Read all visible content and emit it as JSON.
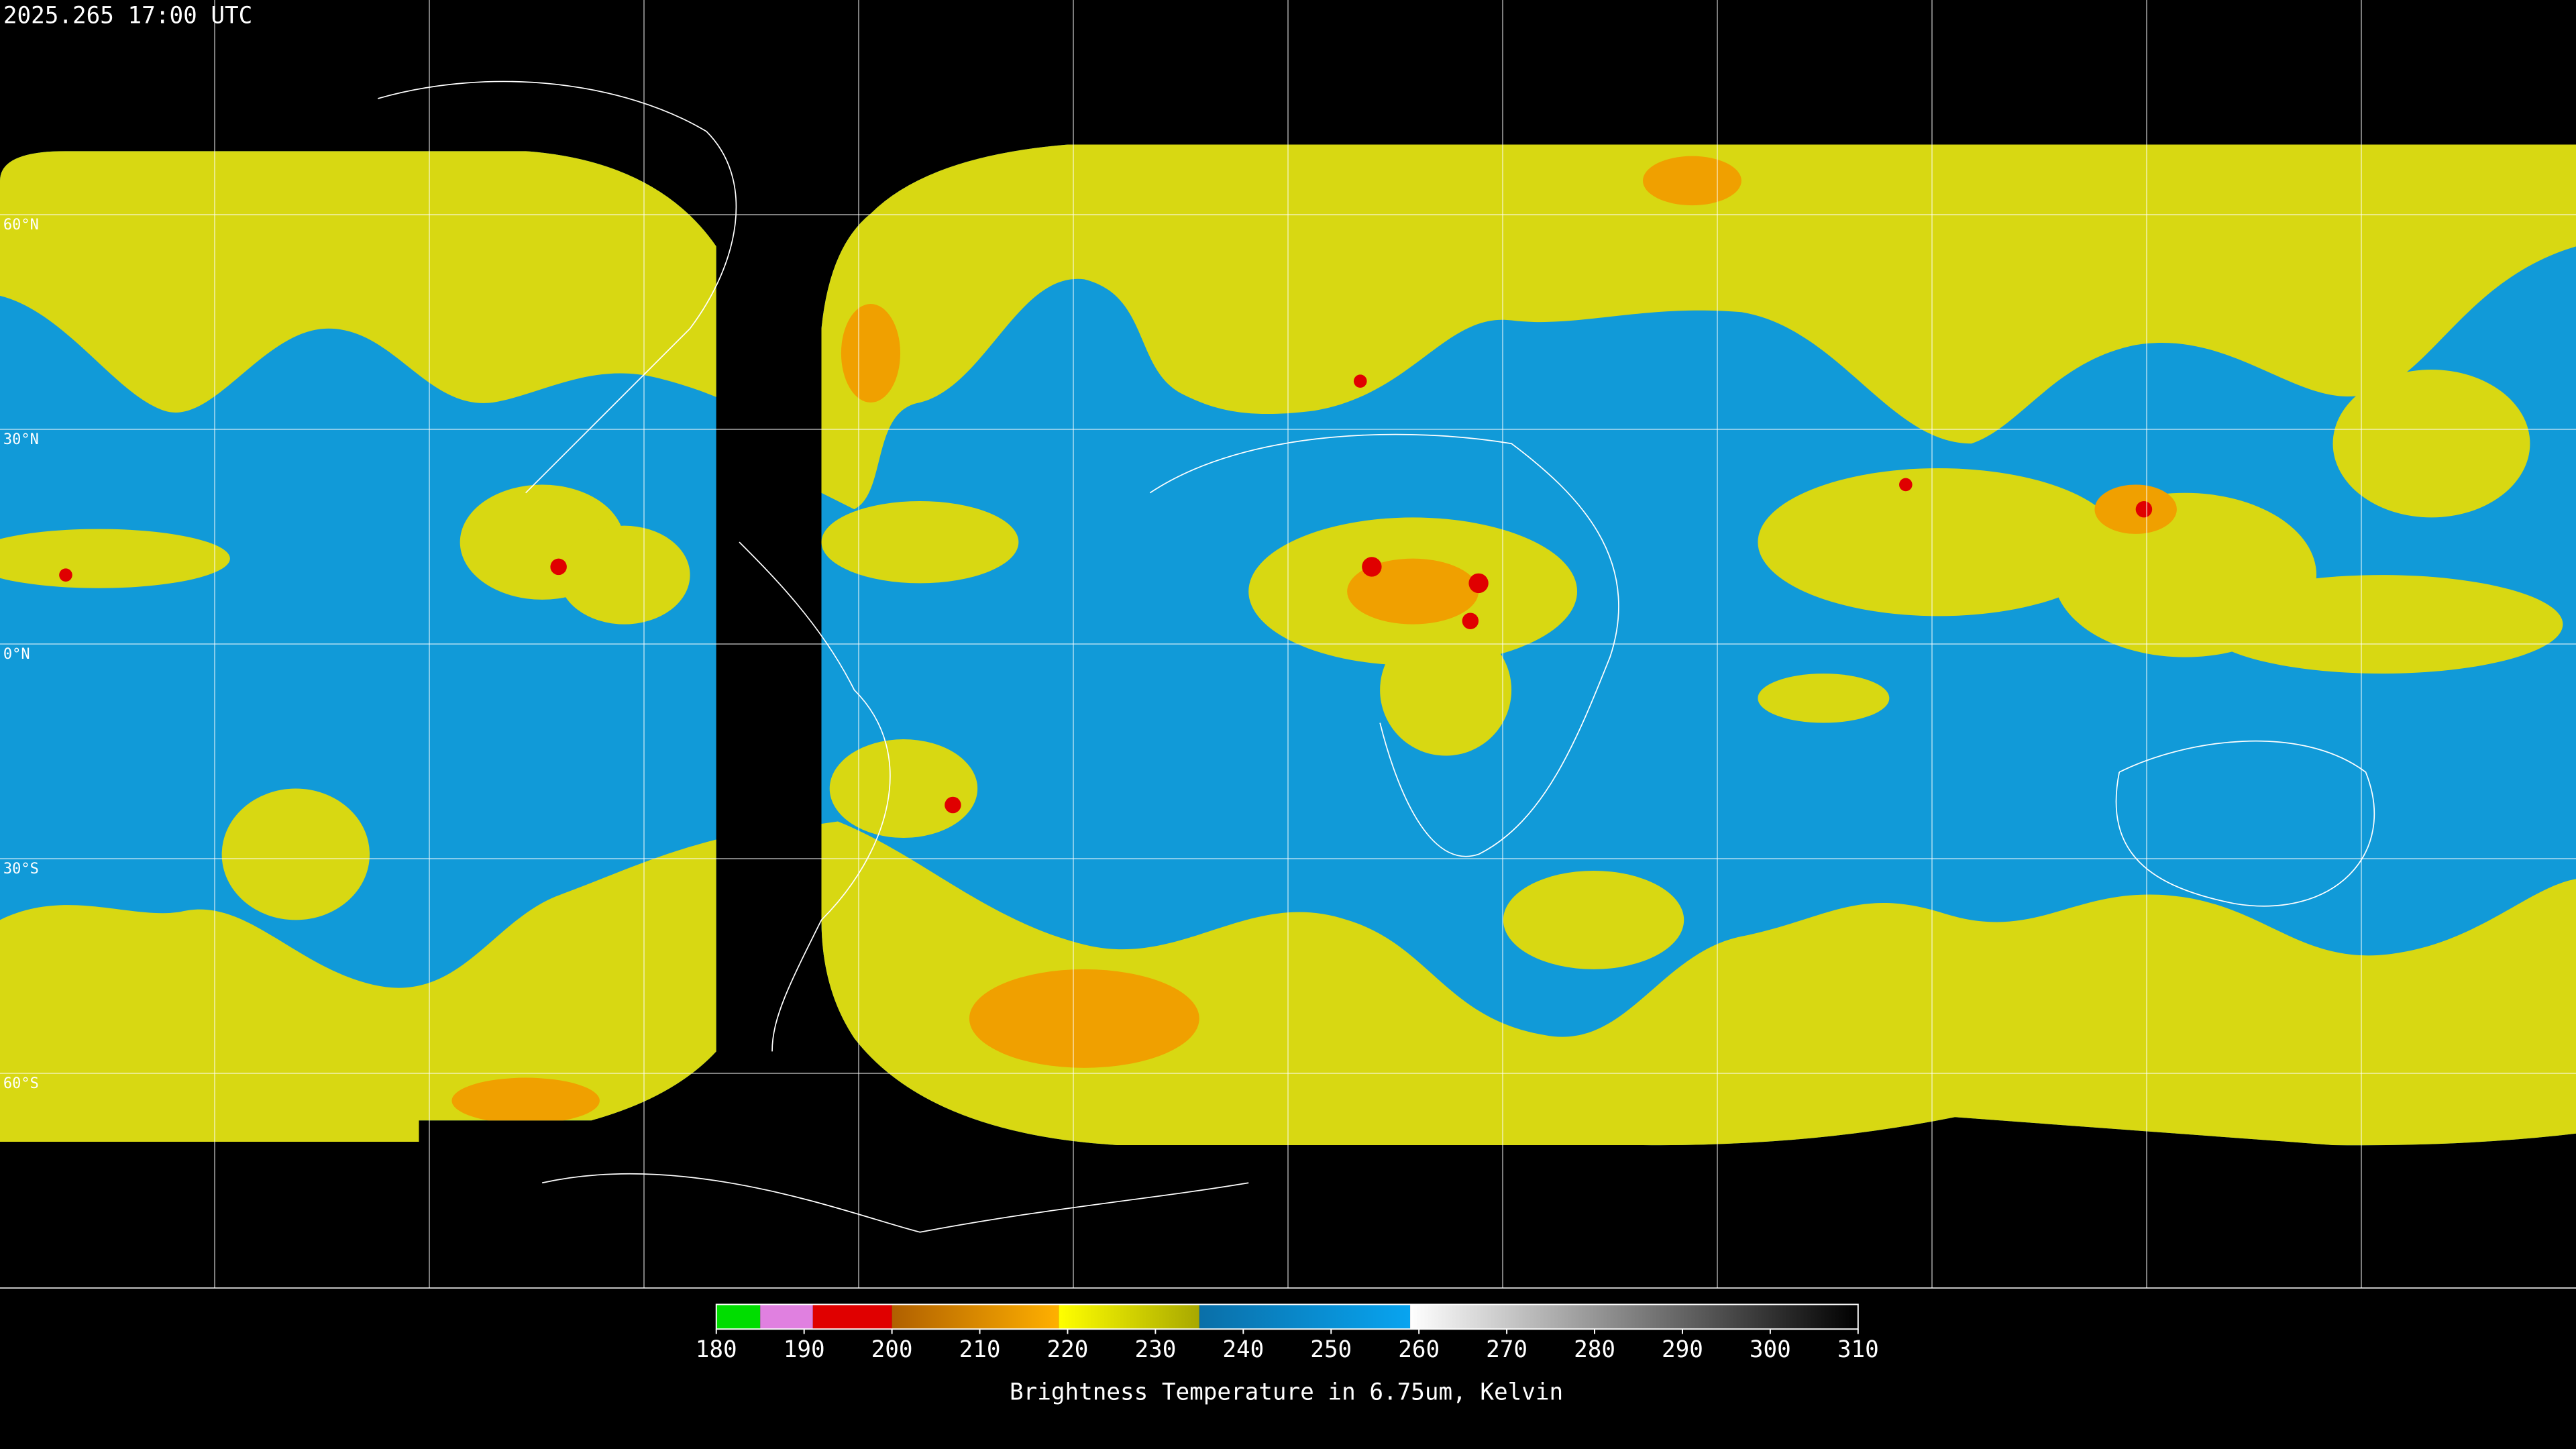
{
  "chart_data": {
    "type": "map",
    "timestamp": "2025.265 17:00 UTC",
    "ylim": [
      -90,
      90
    ],
    "yticks": [
      {
        "value": 60,
        "label": "60°N"
      },
      {
        "value": 30,
        "label": "30°N"
      },
      {
        "value": 0,
        "label": "0°N"
      },
      {
        "value": -30,
        "label": "30°S"
      },
      {
        "value": -60,
        "label": "60°S"
      }
    ],
    "colorbar": {
      "title": "Brightness Temperature in 6.75um, Kelvin",
      "xlim": [
        180,
        310
      ],
      "xticks": [
        180,
        190,
        200,
        210,
        220,
        230,
        240,
        250,
        260,
        270,
        280,
        290,
        300,
        310
      ],
      "bands": [
        {
          "from": 180,
          "to": 185,
          "start_color": "#00dd00",
          "end_color": "#00dd00"
        },
        {
          "from": 185,
          "to": 191,
          "start_color": "#e080e0",
          "end_color": "#e080e0"
        },
        {
          "from": 191,
          "to": 200,
          "start_color": "#e00000",
          "end_color": "#e00000"
        },
        {
          "from": 200,
          "to": 219,
          "start_color": "#b06000",
          "end_color": "#ffb000"
        },
        {
          "from": 219,
          "to": 235,
          "start_color": "#ffff00",
          "end_color": "#a8a800"
        },
        {
          "from": 235,
          "to": 259,
          "start_color": "#0a6fa8",
          "end_color": "#08a4f0"
        },
        {
          "from": 259,
          "to": 310,
          "start_color": "#ffffff",
          "end_color": "#000000"
        }
      ]
    }
  }
}
